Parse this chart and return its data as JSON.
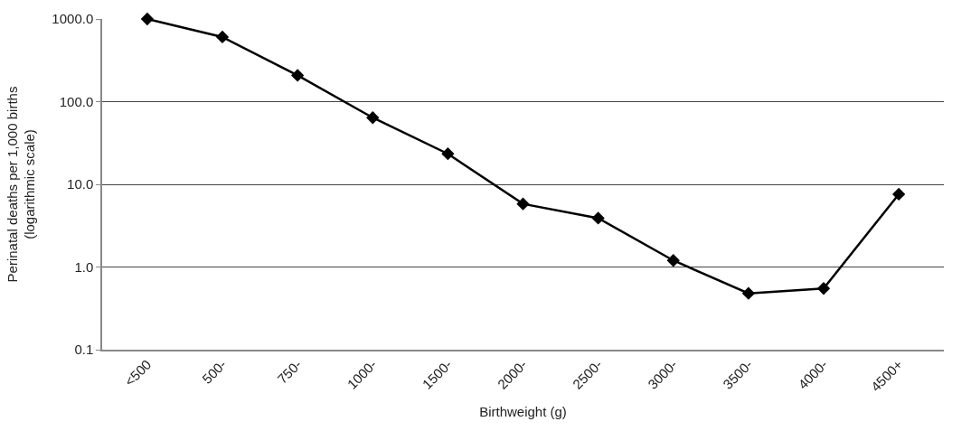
{
  "chart_data": {
    "type": "line",
    "xlabel": "Birthweight (g)",
    "ylabel": "Perinatal deaths per 1,000 births\n(logarithmic scale)",
    "categories": [
      "<500",
      "500-",
      "750-",
      "1000-",
      "1500-",
      "2000-",
      "2500-",
      "3000-",
      "3500-",
      "4000-",
      "4500+"
    ],
    "series": [
      {
        "color": "#000000",
        "values": [
          1000,
          605,
          208,
          64,
          23.4,
          5.8,
          3.9,
          1.2,
          0.48,
          0.55,
          7.6
        ]
      }
    ],
    "log": "y",
    "ylim": [
      0.1,
      1000
    ],
    "yticks": [
      {
        "value": 0.1,
        "label": "0.1"
      },
      {
        "value": 1,
        "label": "1.0"
      },
      {
        "value": 10,
        "label": "10.0"
      },
      {
        "value": 100,
        "label": "100.0"
      },
      {
        "value": 1000,
        "label": "1000.0"
      }
    ],
    "grid": "y",
    "marker": "diamond",
    "line_style": "solid"
  }
}
